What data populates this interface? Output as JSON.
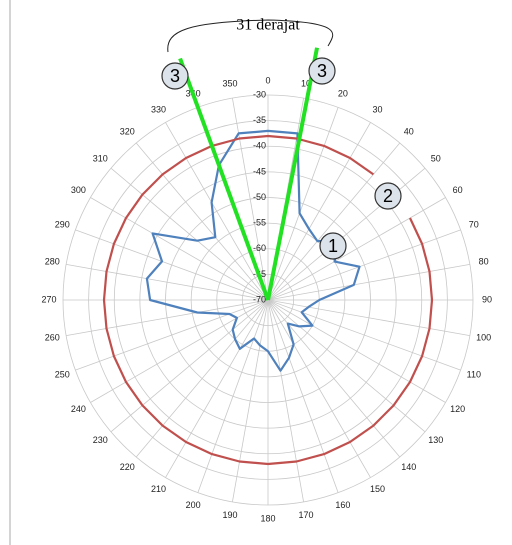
{
  "chart_data": {
    "type": "polar",
    "title": "31 derajat",
    "ylim": [
      -70,
      -30
    ],
    "yticks": [
      -30,
      -35,
      -40,
      -45,
      -50,
      -55,
      -60,
      -65,
      -70
    ],
    "thetaticks": [
      0,
      10,
      20,
      30,
      40,
      50,
      60,
      70,
      80,
      90,
      100,
      110,
      120,
      130,
      140,
      150,
      160,
      170,
      180,
      190,
      200,
      210,
      220,
      230,
      240,
      250,
      260,
      270,
      280,
      290,
      300,
      310,
      320,
      330,
      340,
      350
    ],
    "grid": true,
    "series": [
      {
        "color": "#4f81bd",
        "theta": [
          0,
          10,
          20,
          30,
          40,
          50,
          60,
          70,
          80,
          90,
          100,
          110,
          120,
          130,
          140,
          150,
          160,
          170,
          180,
          190,
          200,
          210,
          220,
          230,
          240,
          250,
          260,
          270,
          280,
          290,
          300,
          310,
          320,
          330,
          340,
          350
        ],
        "values": [
          -37,
          -37,
          -52,
          -54,
          -55,
          -52,
          -55,
          -51,
          -53,
          -60,
          -62,
          -63,
          -60,
          -62,
          -64,
          -60,
          -58,
          -56,
          -60,
          -61,
          -62,
          -59,
          -60,
          -61,
          -63,
          -62,
          -56,
          -47,
          -46,
          -48,
          -44,
          -52,
          -54,
          -48,
          -42,
          -37
        ]
      },
      {
        "color": "#c0504d",
        "theta": [
          60,
          70,
          80,
          90,
          100,
          110,
          120,
          130,
          140,
          150,
          160,
          170,
          180,
          190,
          200,
          210,
          220,
          230,
          240,
          250,
          260,
          270,
          280,
          290,
          300,
          310,
          320,
          330,
          340,
          350,
          0,
          10,
          20,
          30,
          40
        ],
        "values": [
          -38,
          -38,
          -38,
          -38,
          -38,
          -38,
          -38,
          -38,
          -38,
          -38,
          -38,
          -38,
          -38,
          -38,
          -38,
          -38,
          -38,
          -38,
          -38,
          -38,
          -38,
          -38,
          -38,
          -38,
          -38,
          -38,
          -38,
          -38,
          -38,
          -38,
          -38,
          -38,
          -38,
          -38,
          -38
        ]
      }
    ],
    "callouts": [
      {
        "label": "1"
      },
      {
        "label": "2"
      }
    ],
    "markers": [
      {
        "label": "3",
        "theta": 340
      },
      {
        "label": "3",
        "theta": 11
      }
    ],
    "marker_color": "#22e022"
  }
}
